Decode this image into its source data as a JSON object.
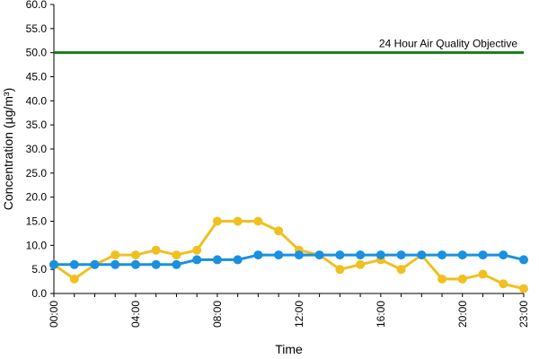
{
  "chart_data": {
    "type": "line",
    "title": "",
    "xlabel": "Time",
    "ylabel": "Concentration (µg/m³)",
    "ylim": [
      0,
      60
    ],
    "y_ticks": [
      "0.0",
      "5.0",
      "10.0",
      "15.0",
      "20.0",
      "25.0",
      "30.0",
      "35.0",
      "40.0",
      "45.0",
      "50.0",
      "55.0",
      "60.0"
    ],
    "x_tick_labels": [
      "00:00",
      "04:00",
      "08:00",
      "12:00",
      "16:00",
      "20:00",
      "23:00"
    ],
    "x_tick_hours": [
      0,
      4,
      8,
      12,
      16,
      20,
      23
    ],
    "x": [
      0,
      1,
      2,
      3,
      4,
      5,
      6,
      7,
      8,
      9,
      10,
      11,
      12,
      13,
      14,
      15,
      16,
      17,
      18,
      19,
      20,
      21,
      22,
      23
    ],
    "grid": false,
    "series": [
      {
        "color": "#f0c020",
        "values": [
          6,
          3,
          6,
          8,
          8,
          9,
          8,
          9,
          15,
          15,
          15,
          13,
          9,
          8,
          5,
          6,
          7,
          5,
          8,
          3,
          3,
          4,
          2,
          1
        ]
      },
      {
        "color": "#1a90e0",
        "values": [
          6,
          6,
          6,
          6,
          6,
          6,
          6,
          7,
          7,
          7,
          8,
          8,
          8,
          8,
          8,
          8,
          8,
          8,
          8,
          8,
          8,
          8,
          8,
          7
        ]
      }
    ],
    "reference_line": {
      "value": 50,
      "label": "24 Hour Air Quality Objective",
      "color": "#1a7a1a"
    }
  }
}
